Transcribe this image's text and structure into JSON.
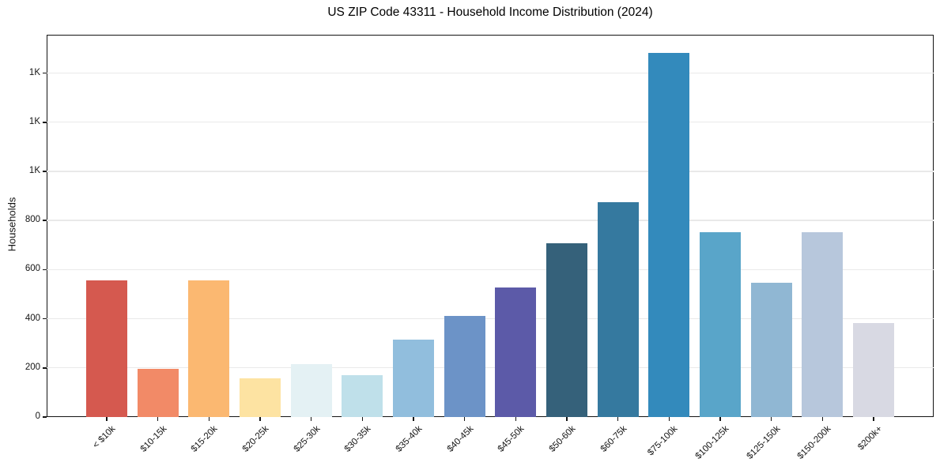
{
  "page": {
    "background": "#ffffff"
  },
  "chart_data": {
    "type": "bar",
    "title": "US ZIP Code 43311 - Household Income Distribution (2024)",
    "xlabel": "",
    "ylabel": "Households",
    "categories": [
      "< $10k",
      "$10-15k",
      "$15-20k",
      "$20-25k",
      "$25-30k",
      "$30-35k",
      "$35-40k",
      "$40-45k",
      "$45-50k",
      "$50-60k",
      "$60-75k",
      "$75-100k",
      "$100-125k",
      "$125-150k",
      "$150-200k",
      "$200k+"
    ],
    "values": [
      557,
      196,
      557,
      157,
      215,
      170,
      315,
      412,
      526,
      706,
      873,
      1482,
      752,
      548,
      752,
      381
    ],
    "bar_colors": [
      "#d5594f",
      "#f28a67",
      "#fbb871",
      "#fde3a2",
      "#e4f1f4",
      "#bfe0ea",
      "#91bedd",
      "#6c93c7",
      "#5c5aa8",
      "#35617a",
      "#35799f",
      "#338abc",
      "#59a5c9",
      "#90b7d3",
      "#b7c7dc",
      "#d8d9e3"
    ],
    "ylim": [
      0,
      1556
    ],
    "yticks": [
      0,
      200,
      400,
      600,
      800,
      1000,
      1200,
      1400
    ],
    "ytick_labels": [
      "0",
      "200",
      "400",
      "600",
      "800",
      "1K",
      "1K",
      "1K"
    ],
    "grid": "horizontal",
    "grid_color": "#e9e9e9",
    "spine_color": "#141414",
    "tick_color": "#141414",
    "text_color": "#141414",
    "legend": "none"
  }
}
